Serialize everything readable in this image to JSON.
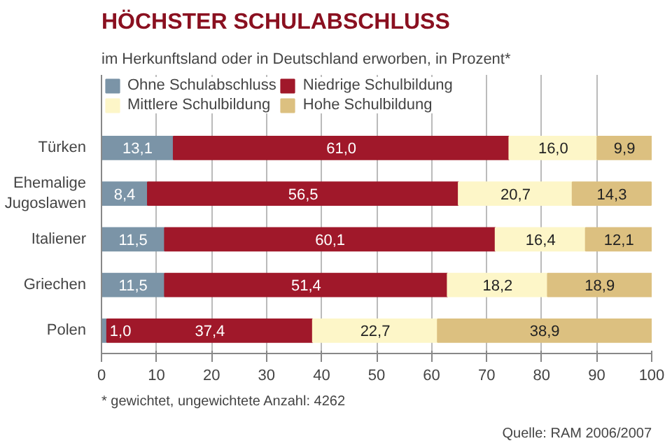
{
  "chart_data": {
    "type": "bar",
    "orientation": "horizontal",
    "stacked": true,
    "title": "HÖCHSTER SCHULABSCHLUSS",
    "subtitle": "im Herkunftsland oder in Deutschland erworben,  in Prozent*",
    "categories": [
      "Türken",
      "Ehemalige\nJugoslawen",
      "Italiener",
      "Griechen",
      "Polen"
    ],
    "series": [
      {
        "name": "Ohne Schulabschluss",
        "color": "#7b94a7",
        "values": [
          13.1,
          8.4,
          11.5,
          11.5,
          1.0
        ],
        "value_labels": [
          "13,1",
          "8,4",
          "11,5",
          "11,5",
          "1,0"
        ]
      },
      {
        "name": "Niedrige Schulbildung",
        "color": "#a0182a",
        "values": [
          61.0,
          56.5,
          60.1,
          51.4,
          37.4
        ],
        "value_labels": [
          "61,0",
          "56,5",
          "60,1",
          "51,4",
          "37,4"
        ]
      },
      {
        "name": "Mittlere Schulbildung",
        "color": "#fdf6c8",
        "values": [
          16.0,
          20.7,
          16.4,
          18.2,
          22.7
        ],
        "value_labels": [
          "16,0",
          "20,7",
          "16,4",
          "18,2",
          "22,7"
        ]
      },
      {
        "name": "Hohe Schulbildung",
        "color": "#dcc080",
        "values": [
          9.9,
          14.3,
          12.1,
          18.9,
          38.9
        ],
        "value_labels": [
          "9,9",
          "14,3",
          "12,1",
          "18,9",
          "38,9"
        ]
      }
    ],
    "xlim": [
      0,
      100
    ],
    "xticks": [
      0,
      10,
      20,
      30,
      40,
      50,
      60,
      70,
      80,
      90,
      100
    ],
    "grid": "x",
    "legend": "top",
    "annotations": [
      "* gewichtet, ungewichtete Anzahl: 4262",
      "Quelle: RAM 2006/2007"
    ]
  }
}
